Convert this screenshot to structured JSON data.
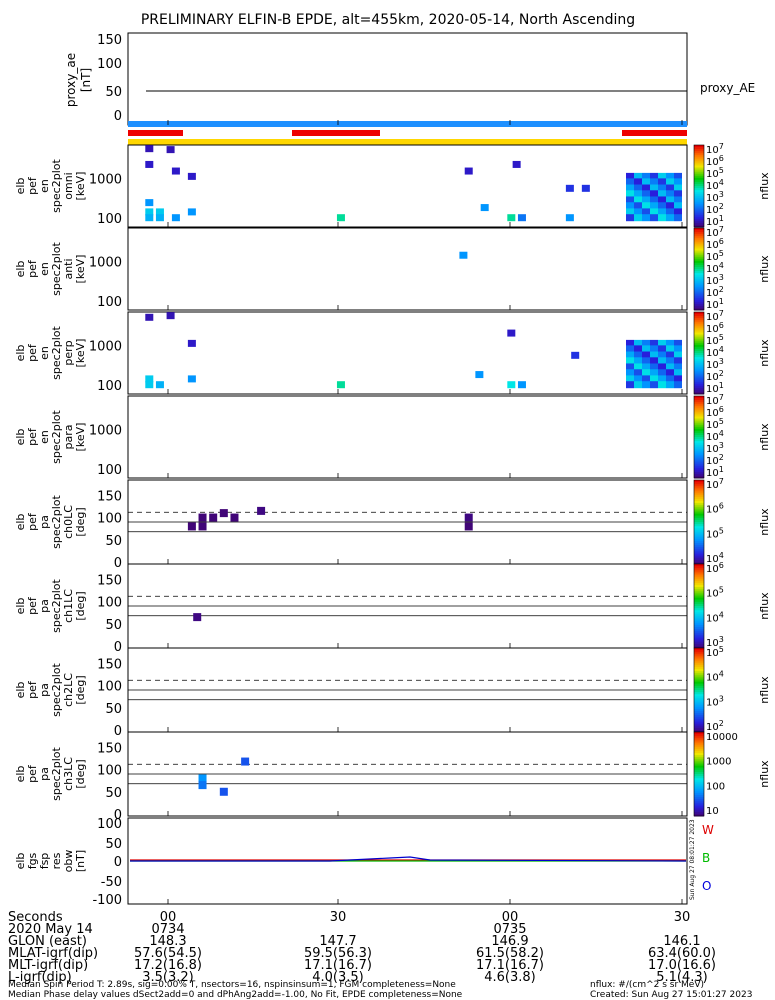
{
  "title": "PRELIMINARY ELFIN-B EPDE, alt=455km, 2020-05-14, North Ascending",
  "ae_panel": {
    "ylabel_lines": [
      "proxy_ae",
      "[nT]"
    ],
    "yticks": [
      "150",
      "100",
      "50",
      "0"
    ],
    "legend": "proxy_AE",
    "value": 50
  },
  "spectra_panels": [
    {
      "ylabel_lines": [
        "elb",
        "pef",
        "en",
        "spec2plot",
        "omni",
        "[keV]"
      ],
      "yticks": [
        "1000",
        "100"
      ],
      "cb_ticks": [
        "10^7",
        "10^6",
        "10^5",
        "10^4",
        "10^3",
        "10^2",
        "10^1"
      ],
      "cb_label": "nflux"
    },
    {
      "ylabel_lines": [
        "elb",
        "pef",
        "en",
        "spec2plot",
        "anti",
        "[keV]"
      ],
      "yticks": [
        "1000",
        "100"
      ],
      "cb_ticks": [
        "10^7",
        "10^6",
        "10^5",
        "10^4",
        "10^3",
        "10^2",
        "10^1"
      ],
      "cb_label": "nflux"
    },
    {
      "ylabel_lines": [
        "elb",
        "pef",
        "en",
        "spec2plot",
        "perp",
        "[keV]"
      ],
      "yticks": [
        "1000",
        "100"
      ],
      "cb_ticks": [
        "10^7",
        "10^6",
        "10^5",
        "10^4",
        "10^3",
        "10^2",
        "10^1"
      ],
      "cb_label": "nflux"
    },
    {
      "ylabel_lines": [
        "elb",
        "pef",
        "en",
        "spec2plot",
        "para",
        "[keV]"
      ],
      "yticks": [
        "1000",
        "100"
      ],
      "cb_ticks": [
        "10^7",
        "10^6",
        "10^5",
        "10^4",
        "10^3",
        "10^2",
        "10^1"
      ],
      "cb_label": "nflux"
    }
  ],
  "pa_panels": [
    {
      "ylabel_lines": [
        "elb",
        "pef",
        "pa",
        "spec2plot",
        "ch0LC",
        "[deg]"
      ],
      "yticks": [
        "150",
        "100",
        "50",
        "0"
      ],
      "cb_ticks": [
        "10^7",
        "10^6",
        "10^5",
        "10^4"
      ],
      "cb_label": "nflux"
    },
    {
      "ylabel_lines": [
        "elb",
        "pef",
        "pa",
        "spec2plot",
        "ch1LC",
        "[deg]"
      ],
      "yticks": [
        "150",
        "100",
        "50",
        "0"
      ],
      "cb_ticks": [
        "10^6",
        "10^5",
        "10^4",
        "10^3"
      ],
      "cb_label": "nflux"
    },
    {
      "ylabel_lines": [
        "elb",
        "pef",
        "pa",
        "spec2plot",
        "ch2LC",
        "[deg]"
      ],
      "yticks": [
        "150",
        "100",
        "50",
        "0"
      ],
      "cb_ticks": [
        "10^5",
        "10^4",
        "10^3",
        "10^2"
      ],
      "cb_label": "nflux"
    },
    {
      "ylabel_lines": [
        "elb",
        "pef",
        "pa",
        "spec2plot",
        "ch3LC",
        "[deg]"
      ],
      "yticks": [
        "150",
        "100",
        "50",
        "0"
      ],
      "cb_ticks": [
        "10000",
        "1000",
        "100",
        "10"
      ],
      "cb_label": "nflux"
    }
  ],
  "mag_panel": {
    "ylabel_lines": [
      "elb",
      "fgs",
      "fsp",
      "res",
      "obw",
      "[nT]"
    ],
    "yticks": [
      "100",
      "50",
      "0",
      "-50",
      "-100"
    ],
    "components": [
      {
        "label": "W",
        "color": "#dd0000"
      },
      {
        "label": "B",
        "color": "#00bb00"
      },
      {
        "label": "O",
        "color": "#0000dd"
      }
    ],
    "side_text": "Sun Aug 27 08:01:27 2023"
  },
  "time_axis": {
    "labels": [
      "Seconds",
      "2020 May 14",
      "GLON (east)",
      "MLAT-igrf(dip)",
      "MLT-igrf(dip)",
      "L-igrf(dip)"
    ],
    "columns": [
      {
        "sec": "00",
        "time": "0734",
        "glon": "148.3",
        "mlat": "57.6(54.5)",
        "mlt": "17.2(16.8)",
        "l": "3.5(3.2)"
      },
      {
        "sec": "30",
        "time": "",
        "glon": "147.7",
        "mlat": "59.5(56.3)",
        "mlt": "17.1(16.7)",
        "l": "4.0(3.5)"
      },
      {
        "sec": "00",
        "time": "0735",
        "glon": "146.9",
        "mlat": "61.5(58.2)",
        "mlt": "17.1(16.7)",
        "l": "4.6(3.8)"
      },
      {
        "sec": "30",
        "time": "",
        "glon": "146.1",
        "mlat": "63.4(60.0)",
        "mlt": "17.0(16.6)",
        "l": "5.1(4.3)"
      }
    ]
  },
  "footer": {
    "line1": "Median Spin Period T: 2.89s, sig=0.00% T, nsectors=16, nspinsinsum=1, FGM completeness=None",
    "line2": "Median Phase delay values dSect2add=0 and dPhAng2add=-1.00, No Fit, EPDE completeness=None",
    "right1": "nflux: #/(cm^2 s sr MeV)",
    "right2": "Created: Sun Aug 27 15:01:27 2023"
  },
  "chart_data": [
    {
      "type": "line",
      "name": "proxy_ae",
      "ylabel": "proxy_ae [nT]",
      "ylim": [
        -15,
        155
      ],
      "series": [
        {
          "name": "proxy_AE",
          "x": [
            0,
            0.05,
            0.5,
            1.0
          ],
          "y": [
            50,
            50,
            51,
            51
          ]
        }
      ]
    },
    {
      "type": "heatmap",
      "name": "spectrograms",
      "time_range_s": [
        0,
        90
      ],
      "energy_range_keV": [
        60,
        7000
      ],
      "panels": [
        "omni",
        "anti",
        "perp",
        "para"
      ],
      "colorbar_range": [
        "1e1",
        "1e7"
      ],
      "omni": [
        {
          "t": 0.04,
          "e": 5500,
          "v": 0.08
        },
        {
          "t": 0.08,
          "e": 5200,
          "v": 0.08
        },
        {
          "t": 0.04,
          "e": 2200,
          "v": 0.1
        },
        {
          "t": 0.09,
          "e": 1500,
          "v": 0.1
        },
        {
          "t": 0.12,
          "e": 1100,
          "v": 0.1
        },
        {
          "t": 0.04,
          "e": 240,
          "v": 0.3
        },
        {
          "t": 0.04,
          "e": 140,
          "v": 0.4
        },
        {
          "t": 0.06,
          "e": 140,
          "v": 0.4
        },
        {
          "t": 0.04,
          "e": 100,
          "v": 0.35
        },
        {
          "t": 0.06,
          "e": 100,
          "v": 0.35
        },
        {
          "t": 0.09,
          "e": 100,
          "v": 0.3
        },
        {
          "t": 0.12,
          "e": 140,
          "v": 0.3
        },
        {
          "t": 0.4,
          "e": 100,
          "v": 0.5
        },
        {
          "t": 0.64,
          "e": 1500,
          "v": 0.1
        },
        {
          "t": 0.67,
          "e": 180,
          "v": 0.3
        },
        {
          "t": 0.73,
          "e": 2200,
          "v": 0.1
        },
        {
          "t": 0.72,
          "e": 100,
          "v": 0.5
        },
        {
          "t": 0.74,
          "e": 100,
          "v": 0.25
        },
        {
          "t": 0.83,
          "e": 550,
          "v": 0.15
        },
        {
          "t": 0.86,
          "e": 550,
          "v": 0.15
        },
        {
          "t": 0.83,
          "e": 100,
          "v": 0.3
        },
        {
          "t": 2.78,
          "e": 2600,
          "v": 0.1
        },
        {
          "t": 2.83,
          "e": 1200,
          "v": 0.25
        }
      ],
      "anti": [
        {
          "t": 0.63,
          "e": 1400,
          "v": 0.3
        },
        {
          "t": 2.8,
          "e": 500,
          "v": 0.45
        },
        {
          "t": 2.8,
          "e": 420,
          "v": 0.45
        },
        {
          "t": 2.98,
          "e": 120,
          "v": 0.55
        }
      ],
      "perp": [
        {
          "t": 0.04,
          "e": 5000,
          "v": 0.08
        },
        {
          "t": 0.08,
          "e": 5500,
          "v": 0.08
        },
        {
          "t": 0.12,
          "e": 1100,
          "v": 0.1
        },
        {
          "t": 0.04,
          "e": 140,
          "v": 0.4
        },
        {
          "t": 0.04,
          "e": 100,
          "v": 0.4
        },
        {
          "t": 0.06,
          "e": 100,
          "v": 0.35
        },
        {
          "t": 0.12,
          "e": 140,
          "v": 0.3
        },
        {
          "t": 0.4,
          "e": 100,
          "v": 0.5
        },
        {
          "t": 0.66,
          "e": 180,
          "v": 0.3
        },
        {
          "t": 0.72,
          "e": 2000,
          "v": 0.1
        },
        {
          "t": 0.72,
          "e": 100,
          "v": 0.45
        },
        {
          "t": 0.74,
          "e": 100,
          "v": 0.3
        },
        {
          "t": 0.84,
          "e": 550,
          "v": 0.15
        },
        {
          "t": 2.78,
          "e": 2600,
          "v": 0.1
        }
      ],
      "para": []
    },
    {
      "type": "heatmap",
      "name": "pitch_angle_spectra",
      "ylim_deg": [
        0,
        180
      ],
      "reference_lines_deg": [
        68,
        90,
        112
      ],
      "panels": [
        "ch0LC",
        "ch1LC",
        "ch2LC",
        "ch3LC"
      ]
    },
    {
      "type": "line",
      "name": "mag_residual",
      "ylabel": "elb fgs fsp res obw [nT]",
      "ylim": [
        -110,
        110
      ],
      "series": [
        {
          "name": "W",
          "y_level": 0
        },
        {
          "name": "B",
          "y_level": 0
        },
        {
          "name": "O",
          "y_level": 0
        }
      ]
    }
  ]
}
